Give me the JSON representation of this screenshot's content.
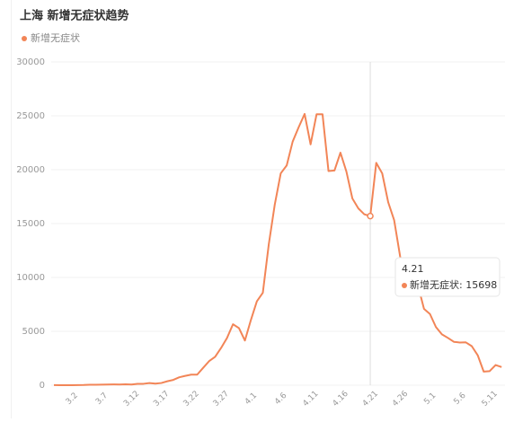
{
  "chart_data": {
    "type": "line",
    "title": "上海 新增无症状趋势",
    "categories": [
      null,
      null,
      null,
      "3.2",
      null,
      null,
      null,
      null,
      "3.7",
      null,
      null,
      null,
      null,
      "3.12",
      null,
      null,
      null,
      null,
      "3.17",
      null,
      null,
      null,
      null,
      "3.22",
      null,
      null,
      null,
      null,
      "3.27",
      null,
      null,
      null,
      null,
      "4.1",
      null,
      null,
      null,
      null,
      "4.6",
      null,
      null,
      null,
      null,
      "4.11",
      null,
      null,
      null,
      null,
      "4.16",
      null,
      null,
      null,
      null,
      "4.21",
      null,
      null,
      null,
      null,
      "4.26",
      null,
      null,
      null,
      null,
      "5.1",
      null,
      null,
      null,
      null,
      "5.6",
      null,
      null,
      null,
      null,
      "5.11",
      null,
      null
    ],
    "series": [
      {
        "name": "新增无症状",
        "color": "#f28557",
        "values": [
          10,
          0,
          1,
          3,
          14,
          16,
          45,
          45,
          48,
          59,
          76,
          64,
          78,
          64,
          128,
          130,
          197,
          150,
          203,
          366,
          492,
          734,
          865,
          977,
          979,
          1609,
          2231,
          2631,
          3450,
          4381,
          5656,
          5298,
          4144,
          6051,
          7788,
          8581,
          13086,
          16766,
          19660,
          20398,
          22609,
          23937,
          25173,
          22348,
          25141,
          25146,
          19872,
          19923,
          21582,
          19831,
          17332,
          16407,
          15861,
          15698,
          20634,
          19657,
          16983,
          15319,
          11956,
          9330,
          9545,
          9227,
          7084,
          6606,
          5395,
          4722,
          4390,
          4024,
          3961,
          3975,
          3625,
          2780,
          1259,
          1305,
          1869,
          1682
        ]
      }
    ],
    "ylim": [
      0,
      30000
    ],
    "yticks": [
      0,
      5000,
      10000,
      15000,
      20000,
      25000,
      30000
    ],
    "grid": true,
    "tooltip": {
      "title": "4.21",
      "label": "新增无症状: 15698"
    }
  }
}
